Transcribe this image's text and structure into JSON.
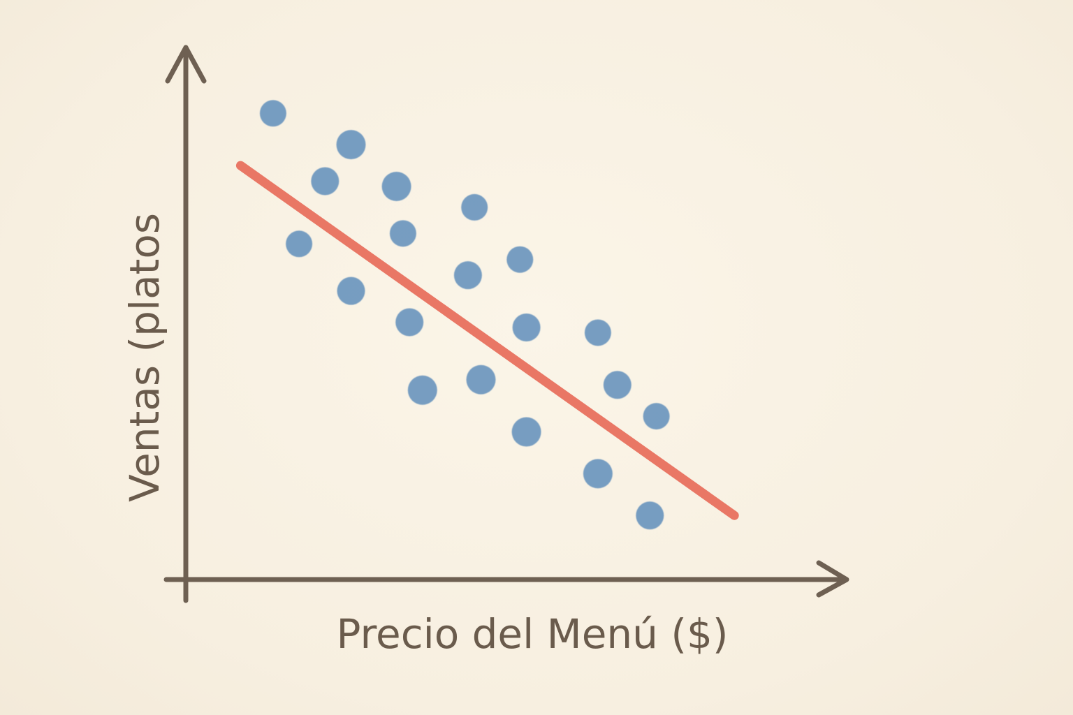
{
  "chart_data": {
    "type": "scatter",
    "title": "",
    "xlabel": "Precio del Menú ($)",
    "ylabel": "Ventas (platos",
    "xlim": [
      0,
      100
    ],
    "ylim": [
      0,
      100
    ],
    "grid": false,
    "ticks": false,
    "colors": {
      "points": "#6f99c0",
      "trend": "#e8705e",
      "axes": "#6e6052",
      "text": "#6a5b4c",
      "background": "#f8f1e3"
    },
    "points": [
      {
        "x": 13,
        "y": 89
      },
      {
        "x": 21,
        "y": 76
      },
      {
        "x": 25,
        "y": 83
      },
      {
        "x": 17,
        "y": 64
      },
      {
        "x": 25,
        "y": 55
      },
      {
        "x": 32,
        "y": 75
      },
      {
        "x": 33,
        "y": 66
      },
      {
        "x": 34,
        "y": 49
      },
      {
        "x": 36,
        "y": 36
      },
      {
        "x": 44,
        "y": 71
      },
      {
        "x": 43,
        "y": 58
      },
      {
        "x": 45,
        "y": 38
      },
      {
        "x": 51,
        "y": 61
      },
      {
        "x": 52,
        "y": 48
      },
      {
        "x": 52,
        "y": 28
      },
      {
        "x": 63,
        "y": 47
      },
      {
        "x": 66,
        "y": 37
      },
      {
        "x": 63,
        "y": 20
      },
      {
        "x": 72,
        "y": 31
      },
      {
        "x": 71,
        "y": 12
      }
    ],
    "trendline": {
      "x": [
        8,
        84
      ],
      "y": [
        79,
        12
      ]
    }
  }
}
